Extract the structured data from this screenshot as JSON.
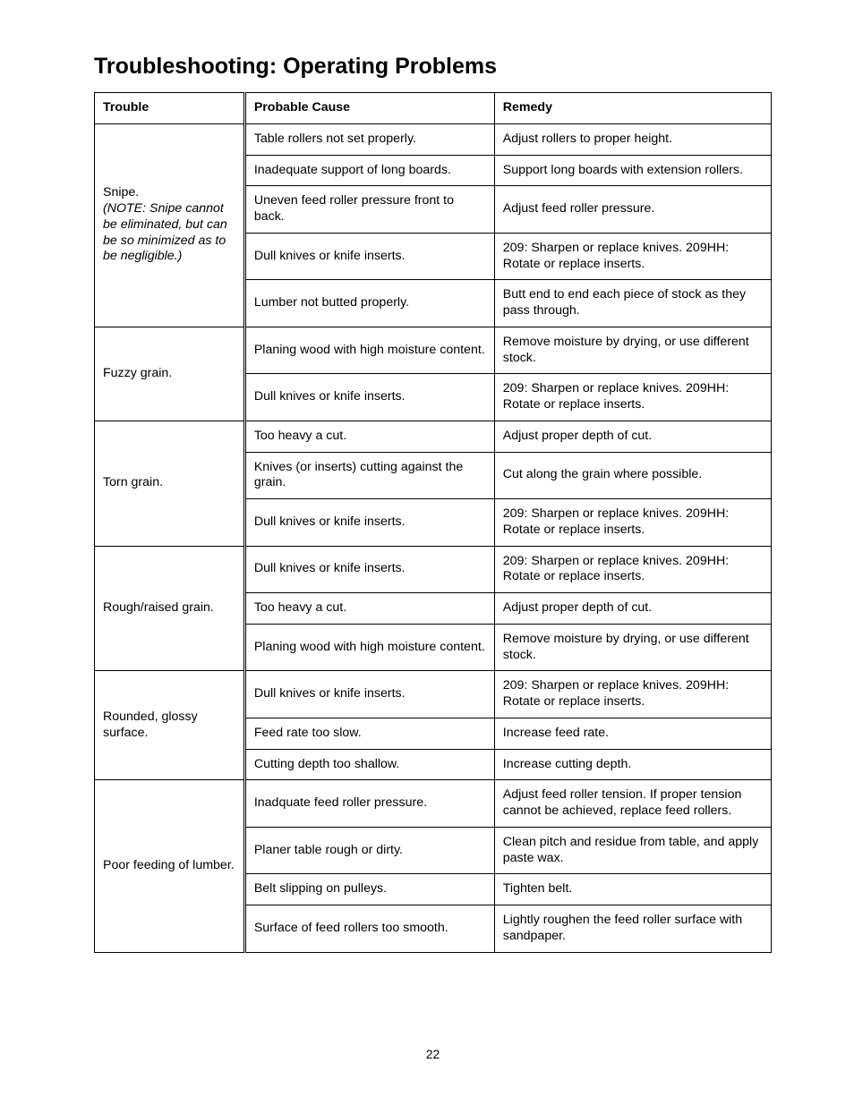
{
  "title": "Troubleshooting: Operating Problems",
  "page_number": "22",
  "headers": {
    "c1": "Trouble",
    "c2": "Probable Cause",
    "c3": "Remedy"
  },
  "groups": [
    {
      "trouble": "Snipe.",
      "note": "(NOTE: Snipe cannot be eliminated, but can be so minimized as to be negligible.)",
      "rows": [
        {
          "cause": "Table rollers not set properly.",
          "remedy": "Adjust rollers to proper height."
        },
        {
          "cause": "Inadequate support of long boards.",
          "remedy": "Support long boards with extension rollers."
        },
        {
          "cause": "Uneven feed roller pressure front to back.",
          "remedy": "Adjust feed roller pressure."
        },
        {
          "cause": "Dull knives or knife inserts.",
          "remedy": "209: Sharpen or replace knives. 209HH: Rotate or replace inserts."
        },
        {
          "cause": "Lumber not butted properly.",
          "remedy": "Butt end to end each piece of stock as they pass through."
        }
      ]
    },
    {
      "trouble": "Fuzzy grain.",
      "rows": [
        {
          "cause": "Planing wood with high moisture content.",
          "remedy": "Remove moisture by drying, or use different stock."
        },
        {
          "cause": "Dull knives or knife inserts.",
          "remedy": "209: Sharpen or replace knives. 209HH: Rotate or replace inserts."
        }
      ]
    },
    {
      "trouble": "Torn grain.",
      "rows": [
        {
          "cause": "Too heavy a cut.",
          "remedy": "Adjust proper depth of cut."
        },
        {
          "cause": "Knives (or inserts) cutting against the grain.",
          "remedy": "Cut along the grain where possible."
        },
        {
          "cause": "Dull knives or knife inserts.",
          "remedy": "209: Sharpen or replace knives. 209HH: Rotate or replace inserts."
        }
      ]
    },
    {
      "trouble": "Rough/raised grain.",
      "rows": [
        {
          "cause": "Dull knives or knife inserts.",
          "remedy": "209: Sharpen or replace knives. 209HH: Rotate or replace inserts."
        },
        {
          "cause": "Too heavy a cut.",
          "remedy": "Adjust proper depth of cut."
        },
        {
          "cause": "Planing wood with high moisture content.",
          "remedy": "Remove moisture by drying, or use different stock."
        }
      ]
    },
    {
      "trouble": "Rounded, glossy surface.",
      "rows": [
        {
          "cause": "Dull knives or knife inserts.",
          "remedy": "209: Sharpen or replace knives. 209HH: Rotate or replace inserts."
        },
        {
          "cause": "Feed rate too slow.",
          "remedy": "Increase feed rate."
        },
        {
          "cause": "Cutting depth too shallow.",
          "remedy": "Increase cutting depth."
        }
      ]
    },
    {
      "trouble": "Poor feeding of lumber.",
      "rows": [
        {
          "cause": "Inadquate feed roller pressure.",
          "remedy": "Adjust feed roller tension. If proper tension cannot be achieved, replace feed rollers."
        },
        {
          "cause": "Planer table rough or dirty.",
          "remedy": "Clean pitch and residue from table, and apply paste wax."
        },
        {
          "cause": "Belt slipping on pulleys.",
          "remedy": "Tighten belt."
        },
        {
          "cause": "Surface of feed rollers too smooth.",
          "remedy": "Lightly roughen the feed roller surface with sandpaper."
        }
      ]
    }
  ]
}
